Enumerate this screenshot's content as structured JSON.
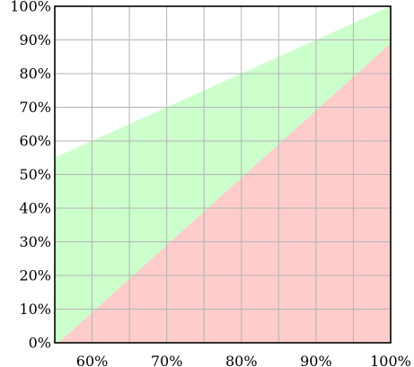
{
  "chart_data": {
    "type": "area",
    "x_ticks": [
      {
        "value": 0.6,
        "label": "60%"
      },
      {
        "value": 0.7,
        "label": "70%"
      },
      {
        "value": 0.8,
        "label": "80%"
      },
      {
        "value": 0.9,
        "label": "90%"
      },
      {
        "value": 1.0,
        "label": "100%"
      }
    ],
    "y_ticks": [
      {
        "value": 0.0,
        "label": "0%"
      },
      {
        "value": 0.1,
        "label": "10%"
      },
      {
        "value": 0.2,
        "label": "20%"
      },
      {
        "value": 0.3,
        "label": "30%"
      },
      {
        "value": 0.4,
        "label": "40%"
      },
      {
        "value": 0.5,
        "label": "50%"
      },
      {
        "value": 0.6,
        "label": "60%"
      },
      {
        "value": 0.7,
        "label": "70%"
      },
      {
        "value": 0.8,
        "label": "80%"
      },
      {
        "value": 0.9,
        "label": "90%"
      },
      {
        "value": 1.0,
        "label": "100%"
      }
    ],
    "xlim": [
      0.55,
      1.0
    ],
    "ylim": [
      0.0,
      1.0
    ],
    "grid": true,
    "x_grid_values": [
      0.55,
      0.6,
      0.65,
      0.7,
      0.75,
      0.8,
      0.85,
      0.9,
      0.95,
      1.0
    ],
    "series": [
      {
        "fill": "#ccffcc",
        "points": [
          [
            0.55,
            0.0
          ],
          [
            0.55,
            0.55
          ],
          [
            1.0,
            1.0
          ],
          [
            1.0,
            0.0
          ]
        ]
      },
      {
        "fill": "#ffcccc",
        "points": [
          [
            0.555,
            0.0
          ],
          [
            1.0,
            0.89
          ],
          [
            1.0,
            0.0
          ]
        ]
      }
    ]
  }
}
